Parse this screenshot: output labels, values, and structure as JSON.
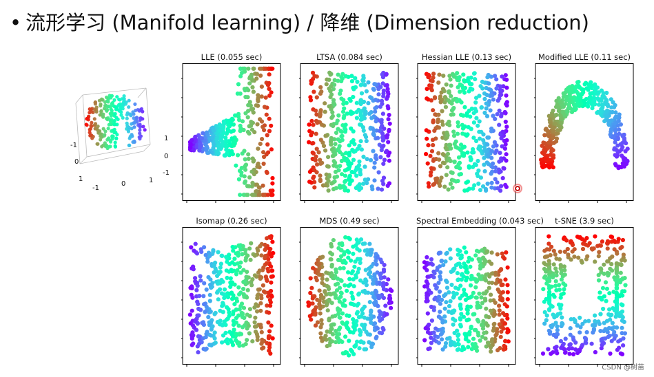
{
  "slide": {
    "bullet": "•",
    "title": "流形学习 (Manifold learning) / 降维 (Dimension reduction)"
  },
  "watermark": "CSDN @树苗",
  "colors": {
    "colormap": "rainbow",
    "axis": "#000000",
    "background": "#ffffff"
  },
  "chart_data": [
    {
      "type": "scatter",
      "title": "",
      "projection": "3d",
      "tick_labels": {
        "x_axis": [
          "-1",
          "0",
          "1"
        ],
        "y_axis": [
          "-1",
          "0",
          "1"
        ],
        "z_axis": [
          "1",
          "0",
          "-1"
        ]
      }
    },
    {
      "type": "scatter",
      "title": "LLE (0.055 sec)",
      "colormap": "rainbow",
      "shape": "fan opening to the right, narrow neck at left",
      "color_gradient": "purple at left tip to red at right edge"
    },
    {
      "type": "scatter",
      "title": "LTSA (0.084 sec)",
      "colormap": "rainbow",
      "shape": "rounded rectangle",
      "color_gradient": "red at left to purple at right"
    },
    {
      "type": "scatter",
      "title": "Hessian LLE (0.13 sec)",
      "colormap": "rainbow",
      "shape": "rounded rectangle",
      "color_gradient": "red at left to purple at right"
    },
    {
      "type": "scatter",
      "title": "Modified LLE (0.11 sec)",
      "colormap": "rainbow",
      "shape": "curved arch band",
      "color_gradient": "red at lower left to purple at lower right"
    },
    {
      "type": "scatter",
      "title": "Isomap (0.26 sec)",
      "colormap": "rainbow",
      "shape": "rectangle with pinched middle edges",
      "color_gradient": "purple at left to red at right"
    },
    {
      "type": "scatter",
      "title": "MDS (0.49 sec)",
      "colormap": "rainbow",
      "shape": "ellipse",
      "color_gradient": "red at left to purple at right"
    },
    {
      "type": "scatter",
      "title": "Spectral Embedding (0.043 sec)",
      "colormap": "rainbow",
      "shape": "tapered trapezoid",
      "color_gradient": "purple at left to red at right"
    },
    {
      "type": "scatter",
      "title": "t-SNE (3.9 sec)",
      "colormap": "rainbow",
      "shape": "irregular clustered loop",
      "color_gradient": "red at top to purple at bottom"
    }
  ]
}
